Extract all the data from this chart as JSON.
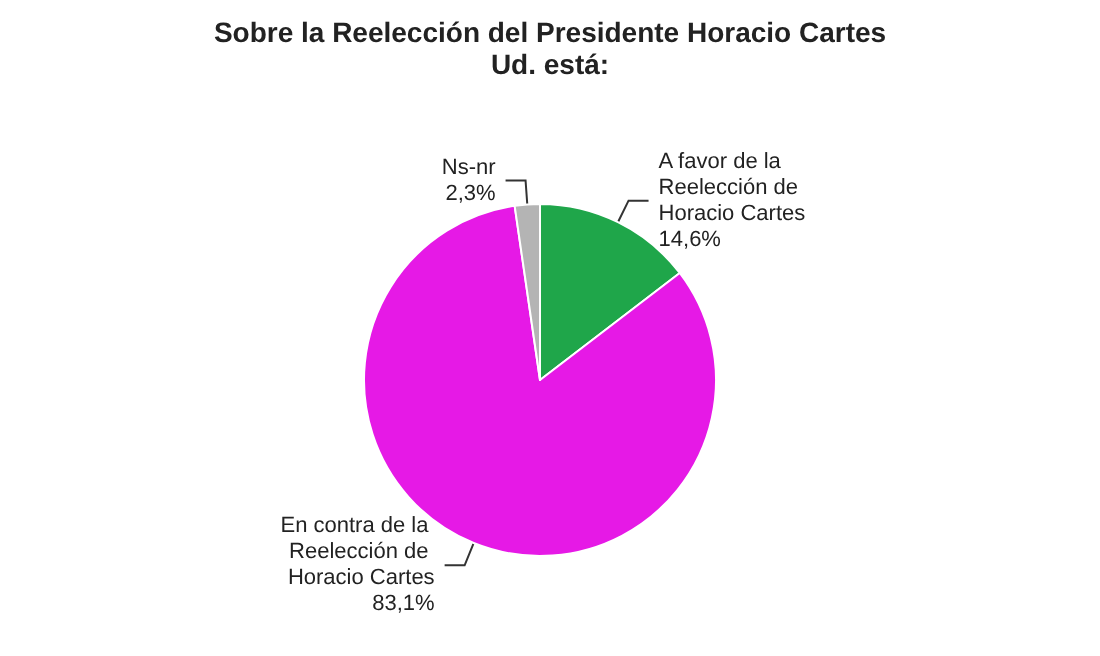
{
  "chart_data": {
    "type": "pie",
    "title": "Sobre la Reelección del Presidente Horacio Cartes",
    "subtitle": "Ud. está:",
    "categories": [
      "A favor de la Reelección de Horacio Cartes",
      "En contra de la Reelección de Horacio Cartes",
      "Ns-nr"
    ],
    "values": [
      14.6,
      83.1,
      2.3
    ],
    "colors": [
      "#1fa64a",
      "#e619e6",
      "#b4b4b4"
    ],
    "value_labels": [
      "14,6%",
      "83,1%",
      "2,3%"
    ],
    "legend": false
  }
}
